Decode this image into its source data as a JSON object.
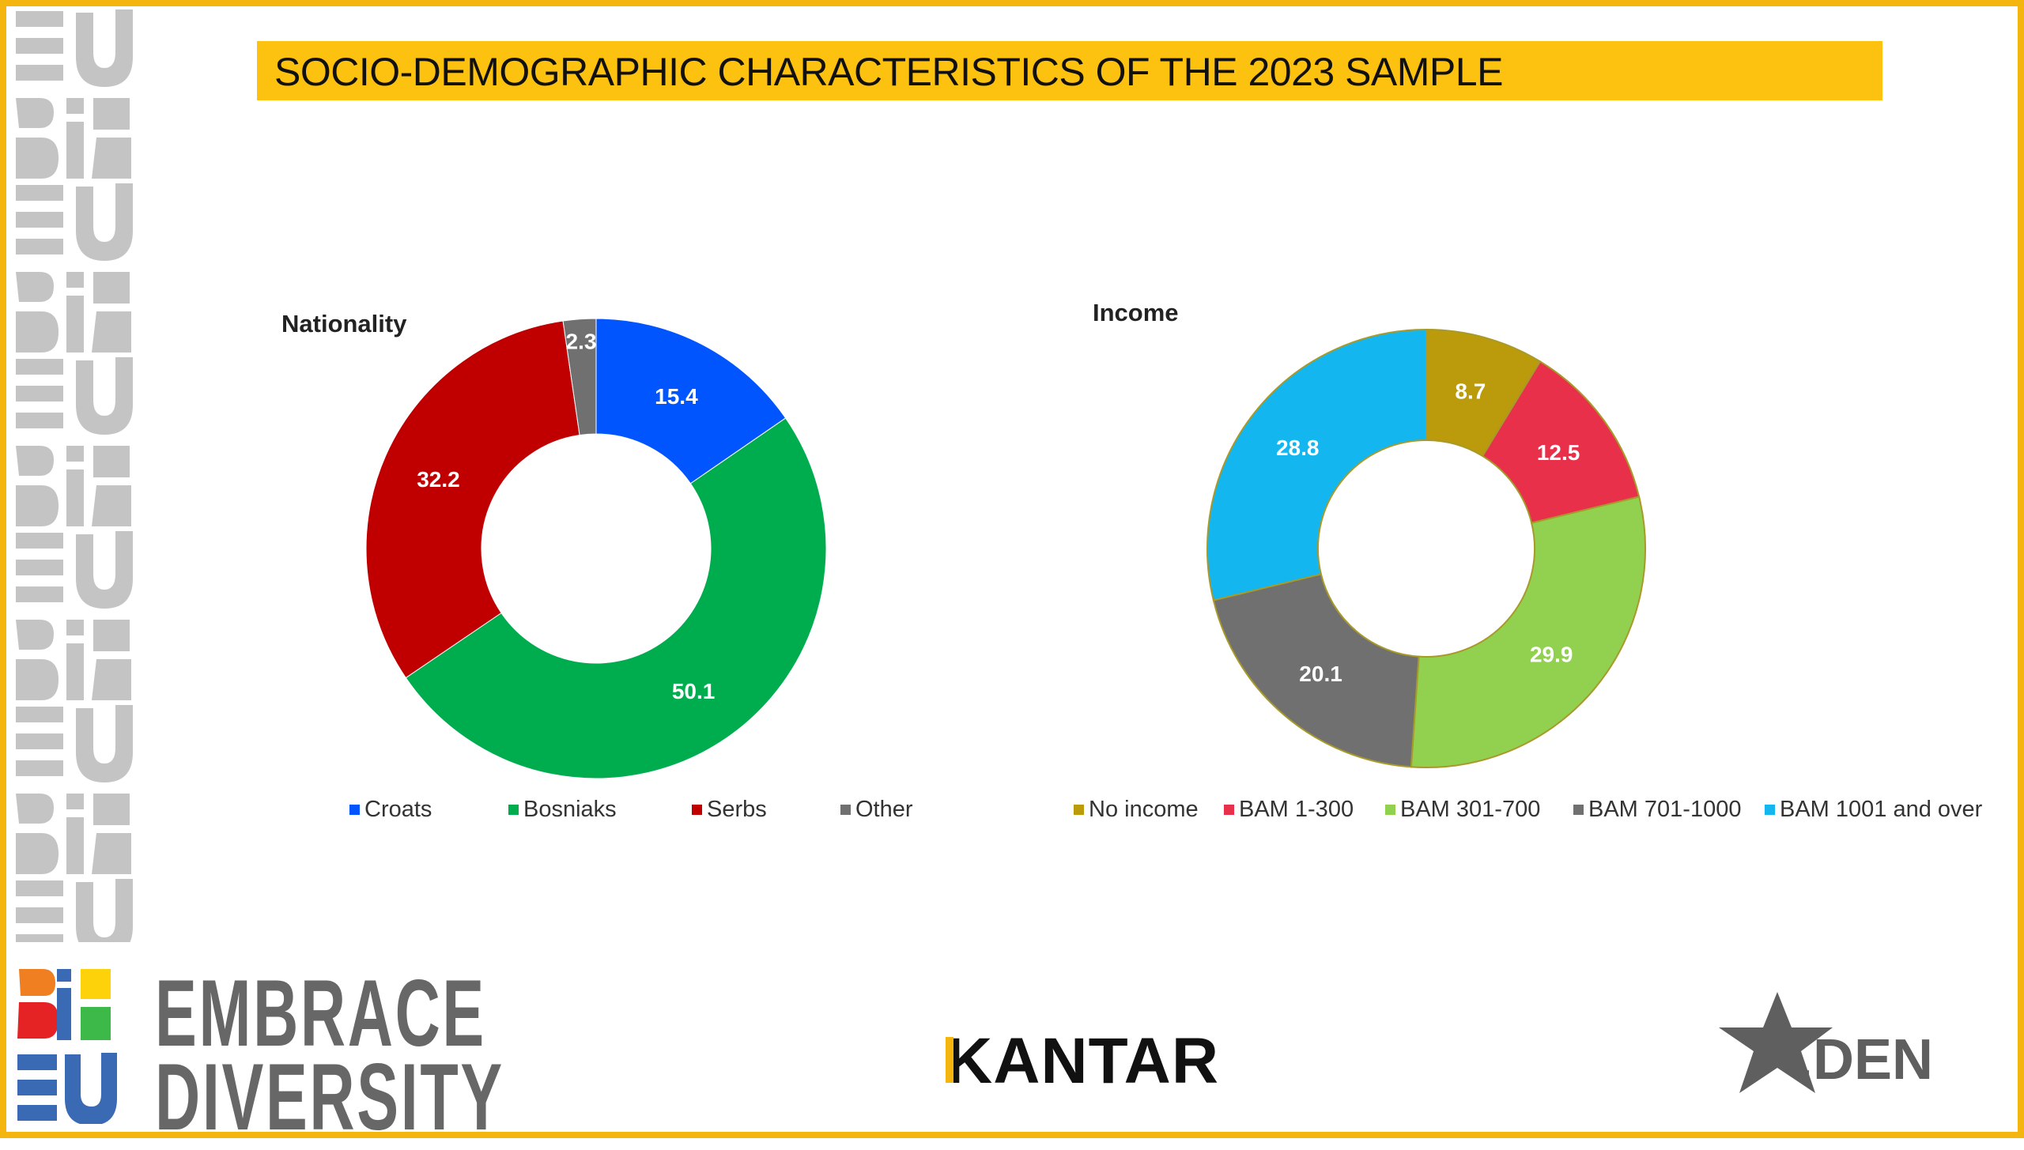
{
  "page": {
    "title": "SOCIO-DEMOGRAPHIC CHARACTERISTICS OF THE 2023 SAMPLE",
    "border_color": "#f5b50f",
    "title_bar_color": "#fdc20f"
  },
  "chart_data": [
    {
      "type": "pie",
      "variant": "donut",
      "title": "Nationality",
      "categories": [
        "Croats",
        "Bosniaks",
        "Serbs",
        "Other"
      ],
      "values": [
        15.4,
        50.1,
        32.2,
        2.3
      ],
      "labels": [
        "15.4",
        "50.1",
        "32.2",
        "2.3"
      ],
      "colors": [
        "#0055ff",
        "#00ad4e",
        "#c00000",
        "#707070"
      ],
      "legend_position": "bottom"
    },
    {
      "type": "pie",
      "variant": "donut",
      "title": "Income",
      "categories": [
        "No income",
        "BAM 1-300",
        "BAM 301-700",
        "BAM 701-1000",
        "BAM 1001 and over"
      ],
      "values": [
        8.7,
        12.5,
        29.9,
        20.1,
        28.8
      ],
      "labels": [
        "8.7",
        "12.5",
        "29.9",
        "20.1",
        "28.8"
      ],
      "colors": [
        "#bb9a0b",
        "#e8304b",
        "#92d050",
        "#707070",
        "#14b6ef"
      ],
      "legend_position": "bottom"
    }
  ],
  "logos": {
    "left": "EMBRACE DIVERSITY",
    "left_line1": "EMBRACE",
    "left_line2": "DIVERSITY",
    "center": "KANTAR",
    "right": "i.DEN"
  }
}
